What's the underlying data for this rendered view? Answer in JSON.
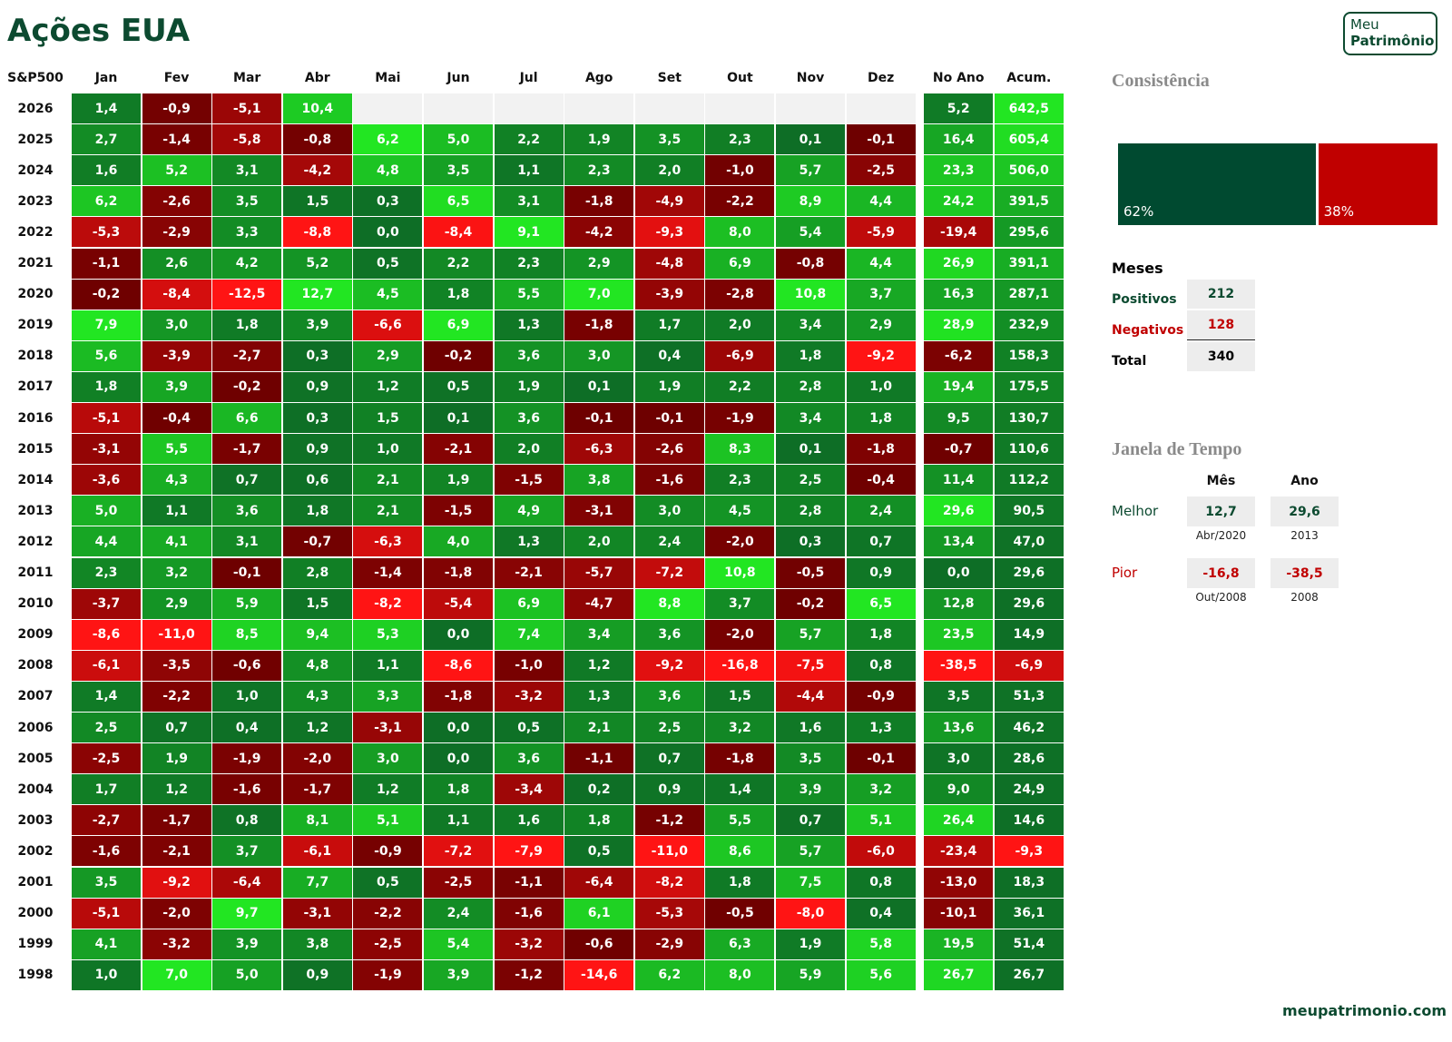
{
  "header": {
    "title": "Ações EUA",
    "logo": [
      "Meu",
      "Patrimônio"
    ]
  },
  "table": {
    "corner": "S&P500",
    "months": [
      "Jan",
      "Fev",
      "Mar",
      "Abr",
      "Mai",
      "Jun",
      "Jul",
      "Ago",
      "Set",
      "Out",
      "Nov",
      "Dez"
    ],
    "year_total_header": "No Ano",
    "cumulative_header": "Acum.",
    "rows": [
      {
        "year": "2026",
        "values": [
          "1,4",
          "-0,9",
          "-5,1",
          "10,4",
          null,
          null,
          null,
          null,
          null,
          null,
          null,
          null
        ],
        "year_total": "5,2",
        "cumulative": "642,5"
      },
      {
        "year": "2025",
        "values": [
          "2,7",
          "-1,4",
          "-5,8",
          "-0,8",
          "6,2",
          "5,0",
          "2,2",
          "1,9",
          "3,5",
          "2,3",
          "0,1",
          "-0,1"
        ],
        "year_total": "16,4",
        "cumulative": "605,4"
      },
      {
        "year": "2024",
        "values": [
          "1,6",
          "5,2",
          "3,1",
          "-4,2",
          "4,8",
          "3,5",
          "1,1",
          "2,3",
          "2,0",
          "-1,0",
          "5,7",
          "-2,5"
        ],
        "year_total": "23,3",
        "cumulative": "506,0"
      },
      {
        "year": "2023",
        "values": [
          "6,2",
          "-2,6",
          "3,5",
          "1,5",
          "0,3",
          "6,5",
          "3,1",
          "-1,8",
          "-4,9",
          "-2,2",
          "8,9",
          "4,4"
        ],
        "year_total": "24,2",
        "cumulative": "391,5"
      },
      {
        "year": "2022",
        "values": [
          "-5,3",
          "-2,9",
          "3,3",
          "-8,8",
          "0,0",
          "-8,4",
          "9,1",
          "-4,2",
          "-9,3",
          "8,0",
          "5,4",
          "-5,9"
        ],
        "year_total": "-19,4",
        "cumulative": "295,6"
      },
      {
        "year": "2021",
        "values": [
          "-1,1",
          "2,6",
          "4,2",
          "5,2",
          "0,5",
          "2,2",
          "2,3",
          "2,9",
          "-4,8",
          "6,9",
          "-0,8",
          "4,4"
        ],
        "year_total": "26,9",
        "cumulative": "391,1"
      },
      {
        "year": "2020",
        "values": [
          "-0,2",
          "-8,4",
          "-12,5",
          "12,7",
          "4,5",
          "1,8",
          "5,5",
          "7,0",
          "-3,9",
          "-2,8",
          "10,8",
          "3,7"
        ],
        "year_total": "16,3",
        "cumulative": "287,1"
      },
      {
        "year": "2019",
        "values": [
          "7,9",
          "3,0",
          "1,8",
          "3,9",
          "-6,6",
          "6,9",
          "1,3",
          "-1,8",
          "1,7",
          "2,0",
          "3,4",
          "2,9"
        ],
        "year_total": "28,9",
        "cumulative": "232,9"
      },
      {
        "year": "2018",
        "values": [
          "5,6",
          "-3,9",
          "-2,7",
          "0,3",
          "2,9",
          "-0,2",
          "3,6",
          "3,0",
          "0,4",
          "-6,9",
          "1,8",
          "-9,2"
        ],
        "year_total": "-6,2",
        "cumulative": "158,3"
      },
      {
        "year": "2017",
        "values": [
          "1,8",
          "3,9",
          "-0,2",
          "0,9",
          "1,2",
          "0,5",
          "1,9",
          "0,1",
          "1,9",
          "2,2",
          "2,8",
          "1,0"
        ],
        "year_total": "19,4",
        "cumulative": "175,5"
      },
      {
        "year": "2016",
        "values": [
          "-5,1",
          "-0,4",
          "6,6",
          "0,3",
          "1,5",
          "0,1",
          "3,6",
          "-0,1",
          "-0,1",
          "-1,9",
          "3,4",
          "1,8"
        ],
        "year_total": "9,5",
        "cumulative": "130,7"
      },
      {
        "year": "2015",
        "values": [
          "-3,1",
          "5,5",
          "-1,7",
          "0,9",
          "1,0",
          "-2,1",
          "2,0",
          "-6,3",
          "-2,6",
          "8,3",
          "0,1",
          "-1,8"
        ],
        "year_total": "-0,7",
        "cumulative": "110,6"
      },
      {
        "year": "2014",
        "values": [
          "-3,6",
          "4,3",
          "0,7",
          "0,6",
          "2,1",
          "1,9",
          "-1,5",
          "3,8",
          "-1,6",
          "2,3",
          "2,5",
          "-0,4"
        ],
        "year_total": "11,4",
        "cumulative": "112,2"
      },
      {
        "year": "2013",
        "values": [
          "5,0",
          "1,1",
          "3,6",
          "1,8",
          "2,1",
          "-1,5",
          "4,9",
          "-3,1",
          "3,0",
          "4,5",
          "2,8",
          "2,4"
        ],
        "year_total": "29,6",
        "cumulative": "90,5"
      },
      {
        "year": "2012",
        "values": [
          "4,4",
          "4,1",
          "3,1",
          "-0,7",
          "-6,3",
          "4,0",
          "1,3",
          "2,0",
          "2,4",
          "-2,0",
          "0,3",
          "0,7"
        ],
        "year_total": "13,4",
        "cumulative": "47,0"
      },
      {
        "year": "2011",
        "values": [
          "2,3",
          "3,2",
          "-0,1",
          "2,8",
          "-1,4",
          "-1,8",
          "-2,1",
          "-5,7",
          "-7,2",
          "10,8",
          "-0,5",
          "0,9"
        ],
        "year_total": "0,0",
        "cumulative": "29,6"
      },
      {
        "year": "2010",
        "values": [
          "-3,7",
          "2,9",
          "5,9",
          "1,5",
          "-8,2",
          "-5,4",
          "6,9",
          "-4,7",
          "8,8",
          "3,7",
          "-0,2",
          "6,5"
        ],
        "year_total": "12,8",
        "cumulative": "29,6"
      },
      {
        "year": "2009",
        "values": [
          "-8,6",
          "-11,0",
          "8,5",
          "9,4",
          "5,3",
          "0,0",
          "7,4",
          "3,4",
          "3,6",
          "-2,0",
          "5,7",
          "1,8"
        ],
        "year_total": "23,5",
        "cumulative": "14,9"
      },
      {
        "year": "2008",
        "values": [
          "-6,1",
          "-3,5",
          "-0,6",
          "4,8",
          "1,1",
          "-8,6",
          "-1,0",
          "1,2",
          "-9,2",
          "-16,8",
          "-7,5",
          "0,8"
        ],
        "year_total": "-38,5",
        "cumulative": "-6,9"
      },
      {
        "year": "2007",
        "values": [
          "1,4",
          "-2,2",
          "1,0",
          "4,3",
          "3,3",
          "-1,8",
          "-3,2",
          "1,3",
          "3,6",
          "1,5",
          "-4,4",
          "-0,9"
        ],
        "year_total": "3,5",
        "cumulative": "51,3"
      },
      {
        "year": "2006",
        "values": [
          "2,5",
          "0,7",
          "0,4",
          "1,2",
          "-3,1",
          "0,0",
          "0,5",
          "2,1",
          "2,5",
          "3,2",
          "1,6",
          "1,3"
        ],
        "year_total": "13,6",
        "cumulative": "46,2"
      },
      {
        "year": "2005",
        "values": [
          "-2,5",
          "1,9",
          "-1,9",
          "-2,0",
          "3,0",
          "0,0",
          "3,6",
          "-1,1",
          "0,7",
          "-1,8",
          "3,5",
          "-0,1"
        ],
        "year_total": "3,0",
        "cumulative": "28,6"
      },
      {
        "year": "2004",
        "values": [
          "1,7",
          "1,2",
          "-1,6",
          "-1,7",
          "1,2",
          "1,8",
          "-3,4",
          "0,2",
          "0,9",
          "1,4",
          "3,9",
          "3,2"
        ],
        "year_total": "9,0",
        "cumulative": "24,9"
      },
      {
        "year": "2003",
        "values": [
          "-2,7",
          "-1,7",
          "0,8",
          "8,1",
          "5,1",
          "1,1",
          "1,6",
          "1,8",
          "-1,2",
          "5,5",
          "0,7",
          "5,1"
        ],
        "year_total": "26,4",
        "cumulative": "14,6"
      },
      {
        "year": "2002",
        "values": [
          "-1,6",
          "-2,1",
          "3,7",
          "-6,1",
          "-0,9",
          "-7,2",
          "-7,9",
          "0,5",
          "-11,0",
          "8,6",
          "5,7",
          "-6,0"
        ],
        "year_total": "-23,4",
        "cumulative": "-9,3"
      },
      {
        "year": "2001",
        "values": [
          "3,5",
          "-9,2",
          "-6,4",
          "7,7",
          "0,5",
          "-2,5",
          "-1,1",
          "-6,4",
          "-8,2",
          "1,8",
          "7,5",
          "0,8"
        ],
        "year_total": "-13,0",
        "cumulative": "18,3"
      },
      {
        "year": "2000",
        "values": [
          "-5,1",
          "-2,0",
          "9,7",
          "-3,1",
          "-2,2",
          "2,4",
          "-1,6",
          "6,1",
          "-5,3",
          "-0,5",
          "-8,0",
          "0,4"
        ],
        "year_total": "-10,1",
        "cumulative": "36,1"
      },
      {
        "year": "1999",
        "values": [
          "4,1",
          "-3,2",
          "3,9",
          "3,8",
          "-2,5",
          "5,4",
          "-3,2",
          "-0,6",
          "-2,9",
          "6,3",
          "1,9",
          "5,8"
        ],
        "year_total": "19,5",
        "cumulative": "51,4"
      },
      {
        "year": "1998",
        "values": [
          "1,0",
          "7,0",
          "5,0",
          "0,9",
          "-1,9",
          "3,9",
          "-1,2",
          "-14,6",
          "6,2",
          "8,0",
          "5,9",
          "5,6"
        ],
        "year_total": "26,7",
        "cumulative": "26,7"
      }
    ]
  },
  "consistency": {
    "title": "Consistência",
    "positive_label": "62%",
    "negative_label": "38%"
  },
  "months_summary": {
    "title": "Meses",
    "positive": {
      "label": "Positivos",
      "value": "212"
    },
    "negative": {
      "label": "Negativos",
      "value": "128"
    },
    "total": {
      "label": "Total",
      "value": "340"
    }
  },
  "time_window": {
    "title": "Janela de Tempo",
    "month_header": "Mês",
    "year_header": "Ano",
    "best": {
      "label": "Melhor",
      "month_value": "12,7",
      "month_date": "Abr/2020",
      "year_value": "29,6",
      "year_date": "2013"
    },
    "worst": {
      "label": "Pior",
      "month_value": "-16,8",
      "month_date": "Out/2008",
      "year_value": "-38,5",
      "year_date": "2008"
    }
  },
  "footer": "meupatrimonio.com"
}
